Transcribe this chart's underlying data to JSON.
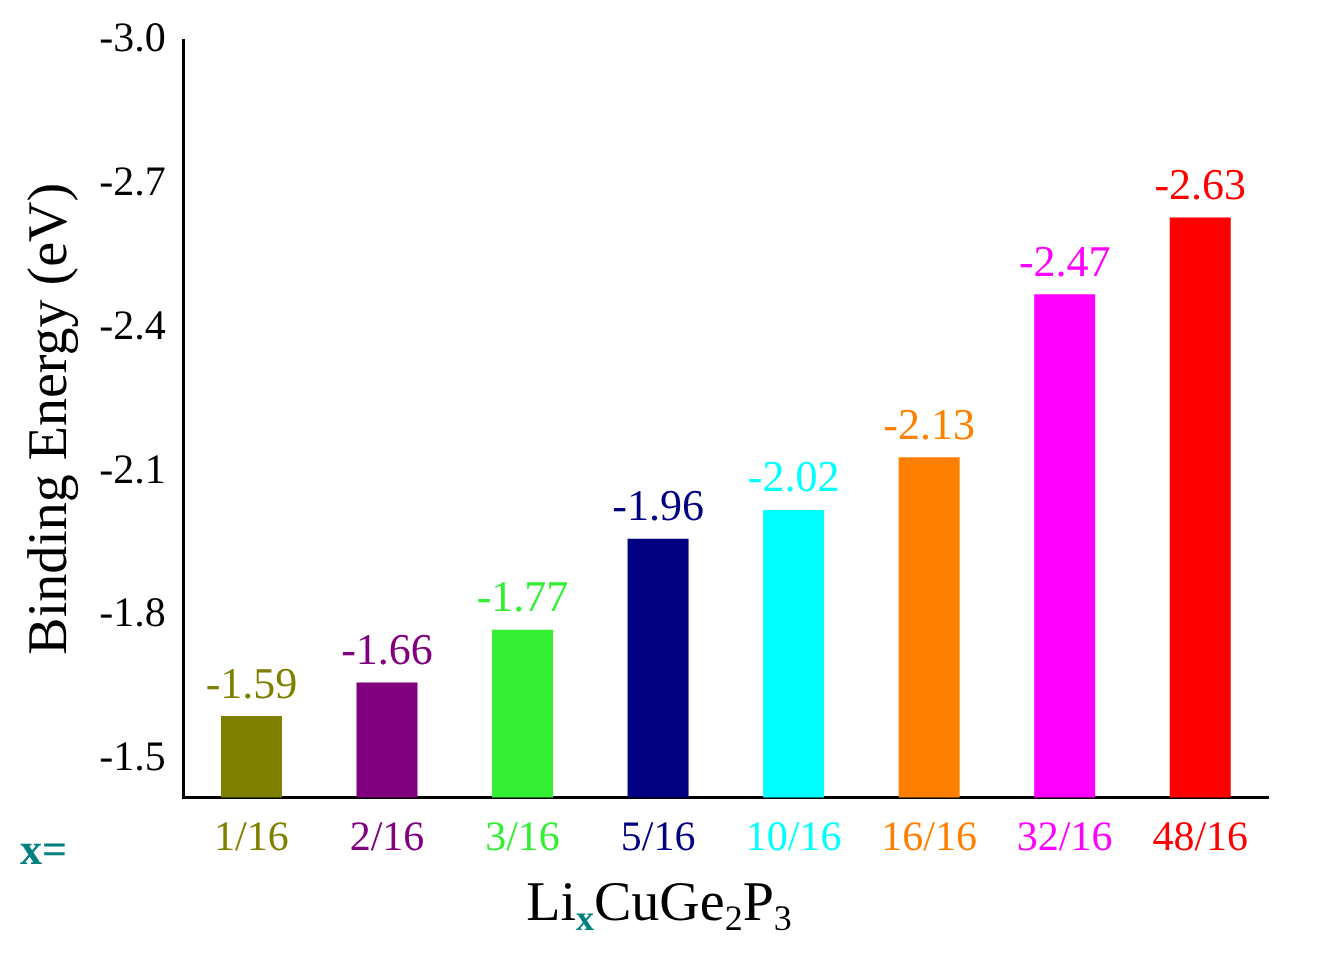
{
  "chart_data": {
    "type": "bar",
    "xlabel": "Li$_{x}$CuGe$_{2}$P$_{3}$",
    "ylabel": "Binding Energy (eV)",
    "annotations": [
      "x="
    ],
    "categories": [
      "1/16",
      "2/16",
      "3/16",
      "5/16",
      "10/16",
      "16/16",
      "32/16",
      "48/16"
    ],
    "values": [
      -1.59,
      -1.66,
      -1.77,
      -1.96,
      -2.02,
      -2.13,
      -2.47,
      -2.63
    ],
    "colors": [
      "#808000",
      "#800080",
      "#33ee33",
      "#000080",
      "#00ffff",
      "#ff8000",
      "#ff00ff",
      "#ff0000"
    ],
    "ylim": [
      -1.42,
      -3.0
    ],
    "yticks": [
      -1.5,
      -1.8,
      -2.1,
      -2.4,
      -2.7,
      {
        "value": -3.0,
        "label": "-3.0"
      }
    ],
    "data_labels": true,
    "grid": false,
    "legend": false
  }
}
